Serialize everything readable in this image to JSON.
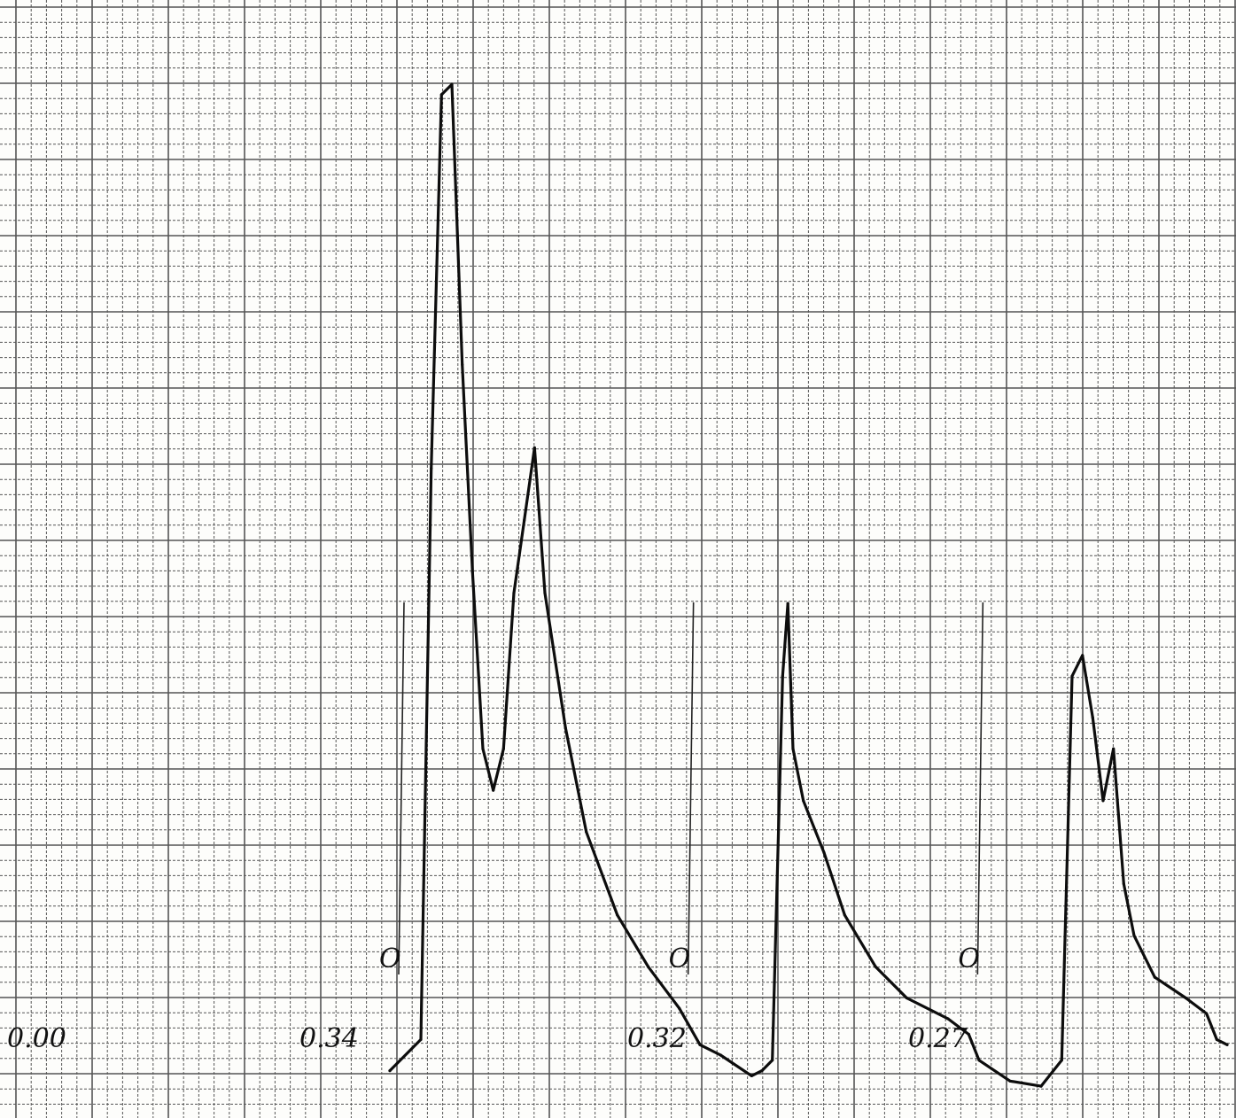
{
  "chart_data": {
    "type": "line",
    "title": "",
    "xlabel": "",
    "ylabel": "",
    "grid": true,
    "series": [
      {
        "values": [
          [
            0,
            0.02
          ],
          [
            3,
            0.05
          ],
          [
            4,
            0.6
          ],
          [
            5,
            0.96
          ],
          [
            6,
            0.97
          ],
          [
            7,
            0.7
          ],
          [
            8,
            0.5
          ],
          [
            9,
            0.33
          ],
          [
            10,
            0.29
          ],
          [
            11,
            0.33
          ],
          [
            12,
            0.48
          ],
          [
            13,
            0.55
          ],
          [
            14,
            0.62
          ],
          [
            15,
            0.48
          ],
          [
            17,
            0.35
          ],
          [
            19,
            0.25
          ],
          [
            22,
            0.17
          ],
          [
            25,
            0.12
          ],
          [
            28,
            0.08
          ],
          [
            30,
            0.045
          ],
          [
            32,
            0.035
          ],
          [
            35,
            0.015
          ],
          [
            36,
            0.02
          ],
          [
            37,
            0.03
          ],
          [
            38,
            0.4
          ],
          [
            38.5,
            0.47
          ],
          [
            39,
            0.33
          ],
          [
            40,
            0.28
          ],
          [
            42,
            0.23
          ],
          [
            44,
            0.17
          ],
          [
            47,
            0.12
          ],
          [
            50,
            0.09
          ],
          [
            54,
            0.07
          ],
          [
            56,
            0.055
          ],
          [
            57,
            0.03
          ],
          [
            60,
            0.01
          ],
          [
            63,
            0.005
          ],
          [
            65,
            0.03
          ],
          [
            66,
            0.4
          ],
          [
            67,
            0.42
          ],
          [
            68,
            0.36
          ],
          [
            69,
            0.28
          ],
          [
            70,
            0.33
          ],
          [
            71,
            0.2
          ],
          [
            72,
            0.15
          ],
          [
            74,
            0.11
          ],
          [
            77,
            0.09
          ],
          [
            79,
            0.075
          ],
          [
            80,
            0.05
          ],
          [
            81,
            0.045
          ]
        ]
      }
    ],
    "annotations": [
      {
        "x": 0,
        "text": "0.00"
      },
      {
        "x": 4,
        "text": "0.34"
      },
      {
        "x": 31,
        "text": "0.32"
      },
      {
        "x": 59,
        "text": "0.27"
      }
    ],
    "markers": [
      {
        "x": 3,
        "text": "O"
      },
      {
        "x": 31,
        "text": "O"
      },
      {
        "x": 59,
        "text": "O"
      }
    ],
    "colors": {
      "grid": "#555555",
      "trace": "#0d0d0d",
      "paper": "#fdfdfb"
    }
  }
}
